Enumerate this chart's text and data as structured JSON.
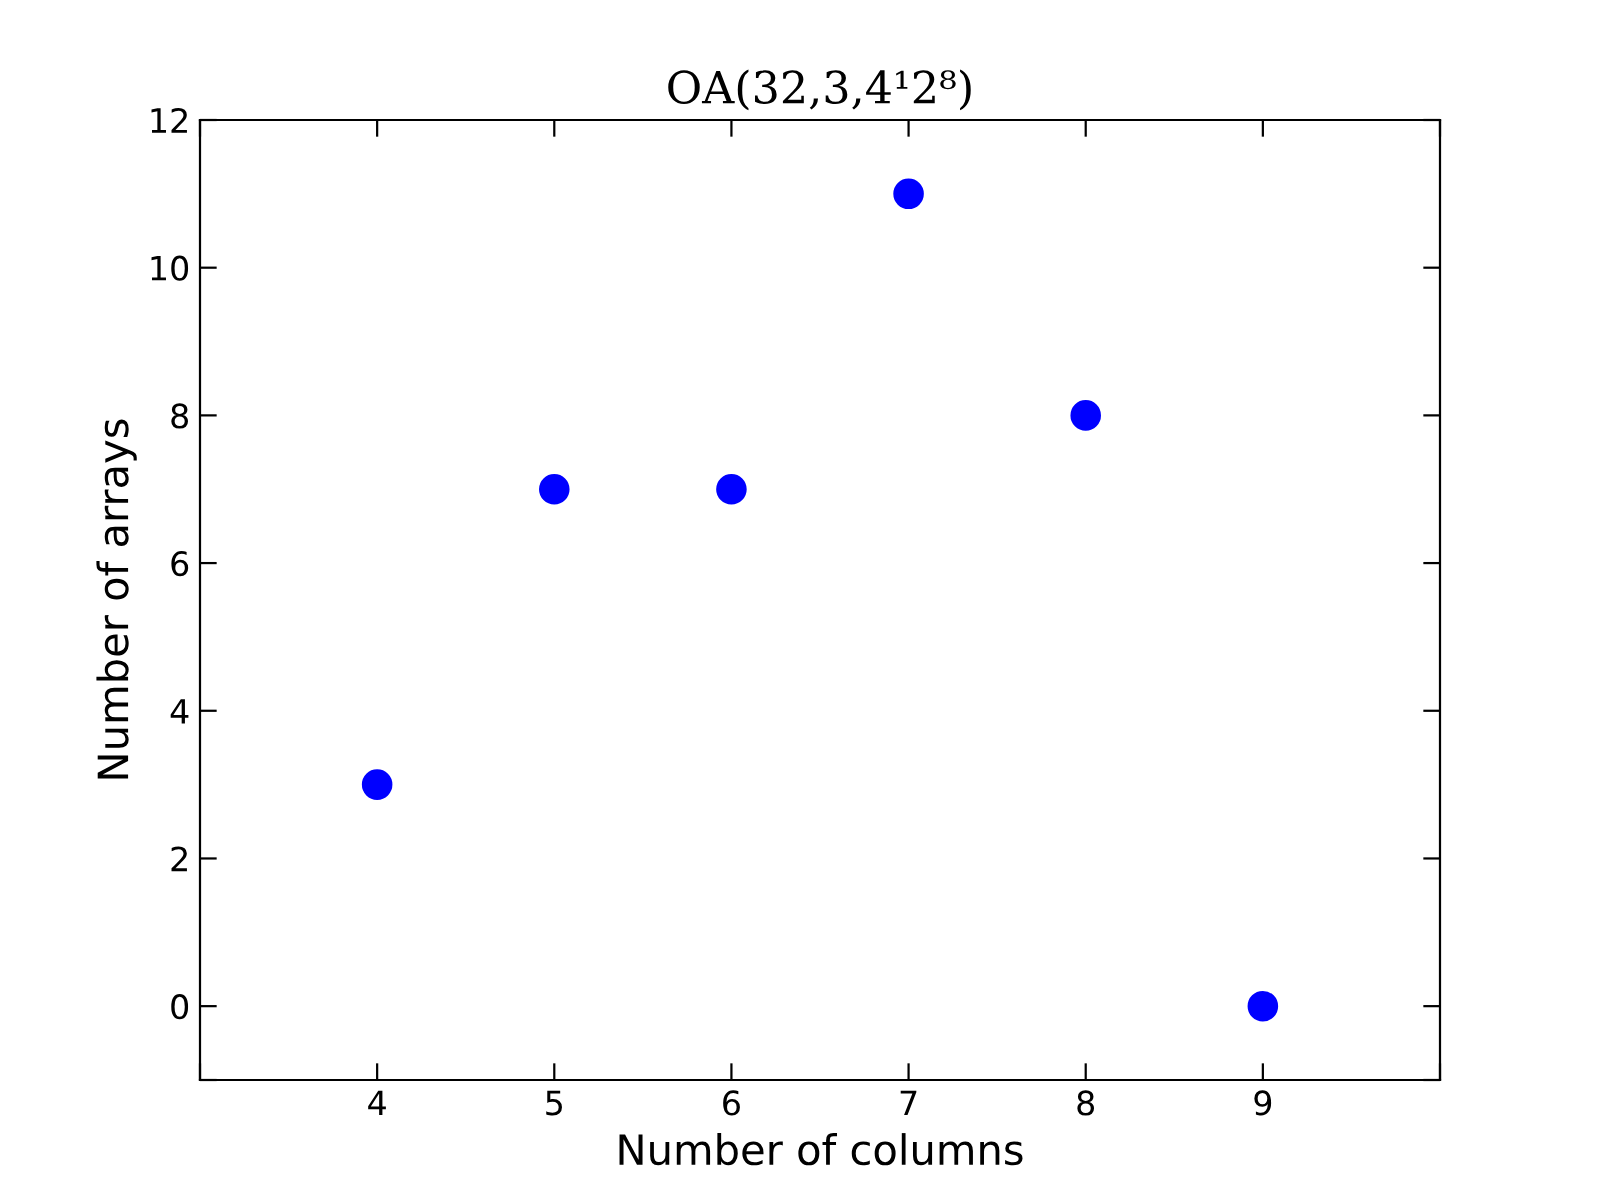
{
  "chart_data": {
    "type": "scatter",
    "title": "OA(32,3,4¹2⁸)",
    "xlabel": "Number of columns",
    "ylabel": "Number of arrays",
    "x": [
      4,
      5,
      6,
      7,
      8,
      9
    ],
    "series": [
      {
        "color": "#0000ff",
        "values": [
          3,
          7,
          7,
          11,
          8,
          0
        ]
      }
    ],
    "xlim": [
      3,
      10
    ],
    "xticks": [
      {
        "value": 3,
        "label": null
      },
      4,
      5,
      6,
      7,
      8,
      9,
      {
        "value": 10,
        "label": null
      }
    ],
    "ylim": [
      -1,
      12
    ],
    "yticks": [
      {
        "value": -1,
        "label": null
      },
      0,
      2,
      4,
      6,
      8,
      10,
      12
    ],
    "marker": "circle",
    "grid": false,
    "legend": false
  }
}
